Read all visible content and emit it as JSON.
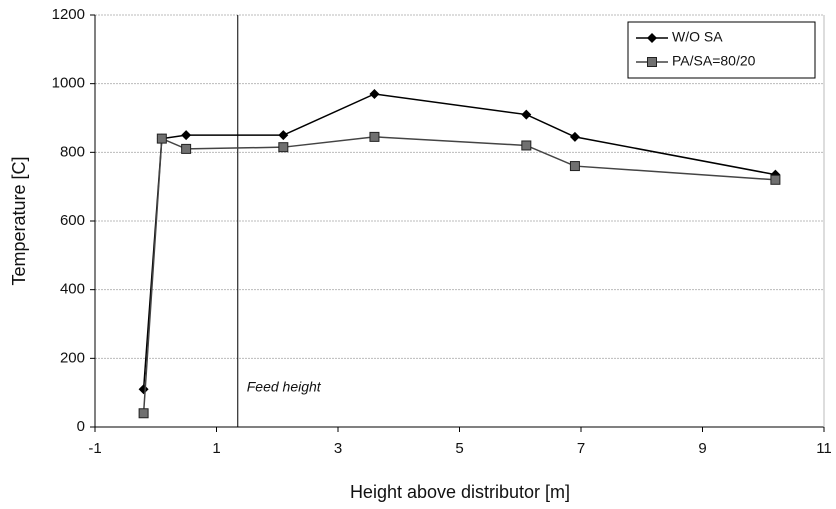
{
  "chart_data": {
    "type": "line",
    "x_label": "Height above distributor [m]",
    "y_label": "Temperature [C]",
    "xlim": [
      -1,
      11
    ],
    "xticks": [
      -1,
      1,
      3,
      5,
      7,
      9,
      11
    ],
    "ylim": [
      0,
      1200
    ],
    "yticks": [
      0,
      200,
      400,
      600,
      800,
      1000,
      1200
    ],
    "grid": true,
    "legend": "upper right",
    "annotations": [
      {
        "text": "Feed height",
        "x": 1.35
      }
    ],
    "series": [
      {
        "name": "W/O SA",
        "color": "#000000",
        "marker": "diamond",
        "x": [
          -0.2,
          0.1,
          0.5,
          2.1,
          3.6,
          6.1,
          6.9,
          10.2
        ],
        "values": [
          110,
          840,
          850,
          850,
          970,
          910,
          845,
          735
        ]
      },
      {
        "name": "PA/SA=80/20",
        "color": "#707070",
        "marker": "square",
        "x": [
          -0.2,
          0.1,
          0.5,
          2.1,
          3.6,
          6.1,
          6.9,
          10.2
        ],
        "values": [
          40,
          840,
          810,
          815,
          845,
          820,
          760,
          720
        ]
      }
    ]
  }
}
